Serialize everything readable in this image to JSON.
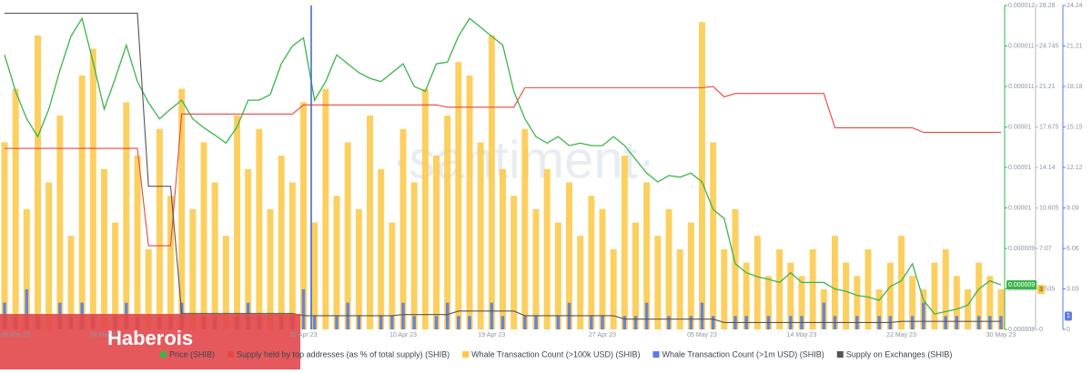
{
  "chart_data": {
    "type": "combo",
    "watermark": "·santiment·",
    "overlay_text": "Haberois",
    "categories": [
      null,
      "06 Mar 23",
      null,
      null,
      null,
      null,
      null,
      null,
      null,
      "18 Mar 23",
      null,
      null,
      null,
      null,
      null,
      null,
      null,
      null,
      null,
      null,
      null,
      null,
      null,
      null,
      null,
      null,
      null,
      "02 Apr 23",
      null,
      null,
      null,
      null,
      null,
      null,
      null,
      null,
      "10 Apr 23",
      null,
      null,
      null,
      null,
      null,
      null,
      null,
      "19 Apr 23",
      null,
      null,
      null,
      null,
      null,
      null,
      null,
      null,
      null,
      "27 Apr 23",
      null,
      null,
      null,
      null,
      null,
      null,
      null,
      null,
      "05 May 23",
      null,
      null,
      null,
      null,
      null,
      null,
      null,
      null,
      "14 May 23",
      null,
      null,
      null,
      null,
      null,
      null,
      null,
      null,
      "22 May 23",
      null,
      null,
      null,
      null,
      null,
      null,
      null,
      null,
      "30 May 23"
    ],
    "ylim": [
      8e-06,
      1.2e-05
    ],
    "yticks": [
      {
        "value": 1.2e-05,
        "label": "0.000012"
      },
      {
        "value": 1.15e-05,
        "label": "0.000011"
      },
      {
        "value": 1.1e-05,
        "label": "0.000011"
      },
      {
        "value": 1.05e-05,
        "label": "0.00001"
      },
      {
        "value": 1e-05,
        "label": "0.00001"
      },
      {
        "value": 9.5e-06,
        "label": "0.00001"
      },
      {
        "value": 9e-06,
        "label": "0.000009"
      },
      {
        "value": 8.5e-06,
        "label": "0.000009"
      },
      {
        "value": 8e-06,
        "label": "0.000008"
      }
    ],
    "y2lim": [
      0,
      28.28
    ],
    "y2ticks": [
      28.28,
      24.745,
      21.21,
      17.675,
      14.14,
      10.605,
      7.07,
      3.535,
      0
    ],
    "y3lim": [
      0,
      24.24
    ],
    "y3ticks": [
      24.24,
      21.21,
      18.18,
      15.15,
      12.12,
      9.09,
      6.06,
      3.03,
      0
    ],
    "grid": false,
    "legend": "bottom",
    "series": [
      {
        "name": "Price (SHIB)",
        "type": "line",
        "axis": "y",
        "color": "#3bb54a",
        "last_label": "0.000009",
        "values": [
          1.139e-05,
          1.094e-05,
          1.06e-05,
          1.038e-05,
          1.072e-05,
          1.12e-05,
          1.162e-05,
          1.184e-05,
          1.13e-05,
          1.072e-05,
          1.11e-05,
          1.151e-05,
          1.106e-05,
          1.08e-05,
          1.06e-05,
          1.072e-05,
          1.083e-05,
          1.06e-05,
          1.049e-05,
          1.04e-05,
          1.03e-05,
          1.05e-05,
          1.083e-05,
          1.083e-05,
          1.09e-05,
          1.128e-05,
          1.15e-05,
          1.16e-05,
          1.083e-05,
          1.106e-05,
          1.139e-05,
          1.128e-05,
          1.117e-05,
          1.11e-05,
          1.106e-05,
          1.117e-05,
          1.128e-05,
          1.1e-05,
          1.094e-05,
          1.128e-05,
          1.13e-05,
          1.162e-05,
          1.184e-05,
          1.173e-05,
          1.162e-05,
          1.151e-05,
          1.094e-05,
          1.06e-05,
          1.038e-05,
          1.03e-05,
          1.038e-05,
          1.027e-05,
          1.03e-05,
          1.027e-05,
          1.027e-05,
          1.038e-05,
          1.027e-05,
          1.01e-05,
          9.93e-06,
          9.82e-06,
          9.9e-06,
          9.88e-06,
          9.93e-06,
          9.82e-06,
          9.48e-06,
          9.37e-06,
          8.81e-06,
          8.7e-06,
          8.65e-06,
          8.62e-06,
          8.58e-06,
          8.7e-06,
          8.58e-06,
          8.58e-06,
          8.58e-06,
          8.5e-06,
          8.47e-06,
          8.42e-06,
          8.4e-06,
          8.36e-06,
          8.53e-06,
          8.6e-06,
          8.81e-06,
          8.36e-06,
          8.19e-06,
          8.22e-06,
          8.25e-06,
          8.3e-06,
          8.5e-06,
          8.6e-06,
          8.55e-06
        ]
      },
      {
        "name": "Supply held by top addresses (as % of total supply) (SHIB)",
        "type": "line",
        "axis": "y2",
        "color": "#e8473f",
        "values": [
          15.8,
          15.8,
          15.8,
          15.8,
          15.8,
          15.8,
          15.8,
          15.8,
          15.8,
          15.8,
          15.8,
          15.8,
          15.8,
          7.3,
          7.3,
          7.3,
          18.8,
          18.8,
          18.8,
          18.8,
          18.8,
          18.8,
          18.8,
          18.8,
          18.8,
          18.8,
          18.8,
          19.6,
          19.6,
          19.6,
          19.6,
          19.6,
          19.6,
          19.6,
          19.6,
          19.6,
          19.6,
          19.6,
          19.6,
          19.6,
          19.4,
          19.4,
          19.4,
          19.4,
          19.4,
          19.4,
          19.4,
          21.1,
          21.1,
          21.1,
          21.1,
          21.1,
          21.1,
          21.1,
          21.1,
          21.1,
          21.1,
          21.1,
          21.1,
          21.1,
          21.1,
          21.1,
          21.1,
          21.1,
          21.2,
          20.3,
          20.6,
          20.6,
          20.6,
          20.6,
          20.6,
          20.6,
          20.6,
          20.6,
          20.6,
          17.6,
          17.6,
          17.6,
          17.6,
          17.6,
          17.6,
          17.6,
          17.6,
          17.2,
          17.2,
          17.2,
          17.2,
          17.2,
          17.2,
          17.2,
          17.2
        ]
      },
      {
        "name": "Whale Transaction Count (>100k USD) (SHIB)",
        "type": "bar",
        "axis": "y3",
        "color": "#fcc844",
        "last_label": "3",
        "values": [
          14,
          18,
          9,
          22,
          11,
          16,
          7,
          19,
          21,
          12,
          8,
          17,
          13,
          6,
          15,
          10,
          18,
          9,
          14,
          11,
          7,
          16,
          12,
          15,
          9,
          13,
          11,
          17,
          8,
          18,
          10,
          14,
          9,
          16,
          12,
          8,
          15,
          11,
          18,
          13,
          16,
          20,
          19,
          14,
          22,
          12,
          10,
          15,
          9,
          12,
          8,
          11,
          7,
          10,
          9,
          6,
          13,
          8,
          11,
          7,
          9,
          6,
          8,
          23,
          14,
          6,
          9,
          5,
          7,
          4,
          6,
          5,
          4,
          6,
          3,
          7,
          5,
          4,
          6,
          3,
          5,
          7,
          4,
          3,
          5,
          6,
          4,
          3,
          5,
          4,
          3
        ]
      },
      {
        "name": "Whale Transaction Count (>1m USD) (SHIB)",
        "type": "bar",
        "axis": "y3",
        "color": "#5b7be0",
        "last_label": "1",
        "values": [
          2,
          1,
          3,
          1,
          0,
          2,
          1,
          2,
          1,
          0,
          1,
          2,
          1,
          0,
          1,
          1,
          2,
          0,
          1,
          1,
          0,
          1,
          2,
          1,
          0,
          1,
          1,
          3,
          1,
          0,
          1,
          2,
          1,
          0,
          1,
          1,
          2,
          1,
          0,
          1,
          2,
          1,
          1,
          0,
          2,
          1,
          0,
          1,
          1,
          0,
          1,
          2,
          0,
          1,
          1,
          0,
          1,
          1,
          2,
          0,
          1,
          0,
          1,
          2,
          1,
          0,
          1,
          1,
          0,
          1,
          0,
          1,
          1,
          0,
          2,
          1,
          0,
          1,
          0,
          1,
          1,
          0,
          1,
          2,
          0,
          1,
          1,
          0,
          1,
          1,
          1
        ]
      },
      {
        "name": "Supply on Exchanges (SHIB)",
        "type": "line",
        "axis": "y2",
        "color": "#555555",
        "values": [
          27.6,
          27.6,
          27.6,
          27.6,
          27.6,
          27.6,
          27.6,
          27.6,
          27.6,
          27.6,
          27.6,
          27.6,
          27.6,
          12.5,
          12.5,
          12.5,
          1.4,
          1.4,
          1.4,
          1.4,
          1.4,
          1.4,
          1.4,
          1.4,
          1.4,
          1.4,
          1.4,
          1.2,
          1.2,
          1.2,
          1.2,
          1.2,
          1.2,
          1.2,
          1.2,
          1.2,
          1.3,
          1.3,
          1.3,
          1.3,
          1.3,
          1.6,
          1.6,
          1.6,
          1.6,
          1.6,
          1.6,
          1.2,
          1.2,
          1.2,
          1.2,
          1.2,
          1.2,
          1.2,
          1.2,
          1.2,
          0.9,
          0.9,
          0.9,
          0.9,
          0.9,
          0.9,
          0.9,
          0.9,
          0.9,
          0.6,
          0.6,
          0.6,
          0.6,
          0.6,
          0.6,
          0.6,
          0.6,
          0.6,
          0.6,
          0.6,
          0.6,
          0.6,
          0.6,
          0.6,
          0.6,
          0.7,
          0.7,
          0.7,
          0.7,
          0.7,
          0.7,
          0.7,
          0.7,
          0.7,
          0.7
        ]
      }
    ]
  }
}
